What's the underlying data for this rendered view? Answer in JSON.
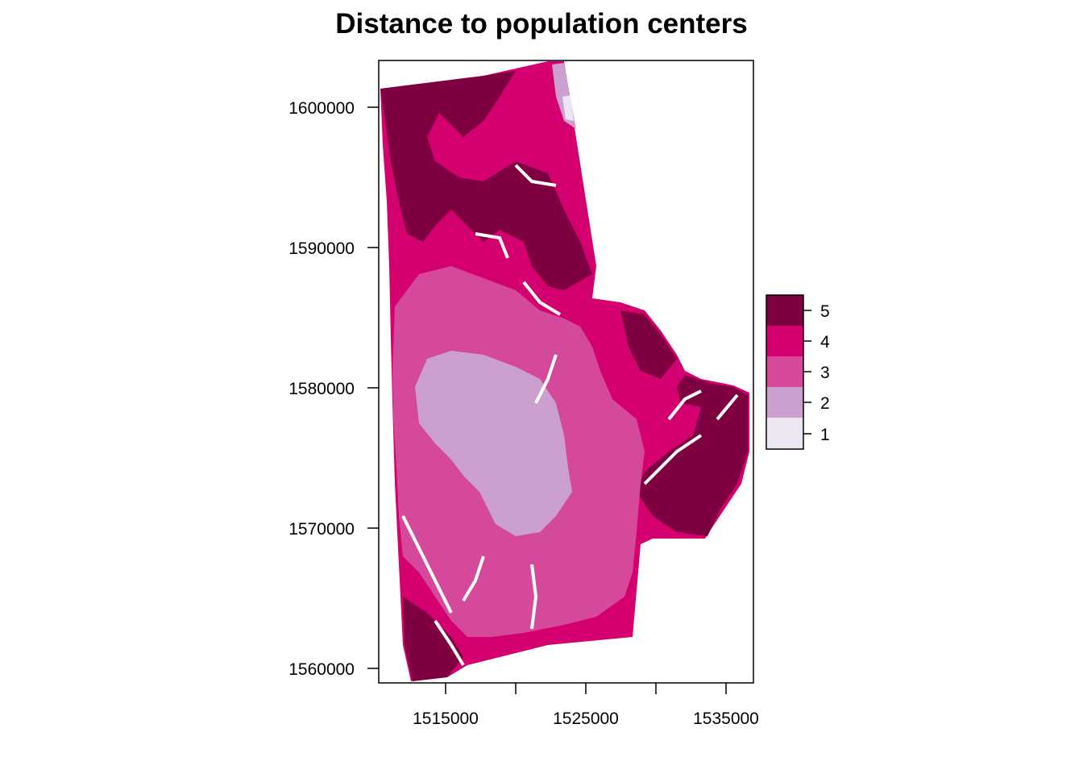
{
  "title": "Distance to population centers",
  "axes": {
    "x_ticks": [
      "1515000",
      "1525000",
      "1535000"
    ],
    "y_ticks": [
      "1600000",
      "1590000",
      "1580000",
      "1570000",
      "1560000"
    ]
  },
  "legend": {
    "entries": [
      {
        "label": "5",
        "color": "#7f0041"
      },
      {
        "label": "4",
        "color": "#d4006f"
      },
      {
        "label": "3",
        "color": "#d4499a"
      },
      {
        "label": "2",
        "color": "#cba0ce"
      },
      {
        "label": "1",
        "color": "#ece5f2"
      }
    ]
  },
  "colors": {
    "class5": "#7f0041",
    "class4": "#d4006f",
    "class3": "#d4499a",
    "class2": "#cba0ce",
    "class1": "#ece5f2",
    "nodata": "#ffffff"
  }
}
